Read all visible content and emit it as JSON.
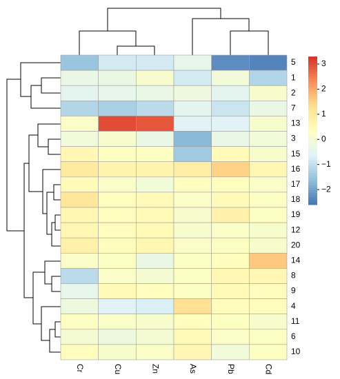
{
  "chart_data": {
    "type": "heatmap",
    "columns": [
      "Cr",
      "Cu",
      "Zn",
      "As",
      "Pb",
      "Cd"
    ],
    "rows": [
      "5",
      "1",
      "2",
      "7",
      "13",
      "3",
      "15",
      "16",
      "17",
      "18",
      "19",
      "12",
      "20",
      "14",
      "8",
      "9",
      "4",
      "11",
      "6",
      "10"
    ],
    "values": [
      [
        -1.5,
        -0.8,
        -0.8,
        -0.4,
        -2.3,
        -2.4
      ],
      [
        -0.3,
        -0.3,
        0.1,
        -0.8,
        -0.1,
        -1.2
      ],
      [
        -0.5,
        -0.4,
        -0.3,
        -0.2,
        -0.5,
        0.1
      ],
      [
        -1.2,
        -1.3,
        -1.1,
        -0.5,
        -0.9,
        -0.3
      ],
      [
        0.2,
        3.0,
        2.9,
        -0.6,
        -0.6,
        0.1
      ],
      [
        -0.1,
        0.1,
        -0.3,
        -1.7,
        -0.3,
        -0.1
      ],
      [
        0.6,
        0.3,
        0.3,
        -1.4,
        0.5,
        0.1
      ],
      [
        1.0,
        0.7,
        0.7,
        0.9,
        1.5,
        0.6
      ],
      [
        0.5,
        0.2,
        -0.1,
        0.4,
        0.4,
        0.2
      ],
      [
        1.1,
        0.4,
        0.5,
        0.2,
        0.5,
        0.3
      ],
      [
        0.6,
        0.4,
        0.5,
        0.1,
        0.8,
        0.3
      ],
      [
        0.6,
        0.4,
        0.5,
        0.1,
        0.2,
        0.1
      ],
      [
        0.8,
        0.4,
        0.6,
        0.2,
        0.3,
        0.1
      ],
      [
        0.2,
        0.3,
        -0.3,
        0.3,
        0.4,
        1.6
      ],
      [
        -1.1,
        0.2,
        0.0,
        0.3,
        0.6,
        0.6
      ],
      [
        -0.4,
        0.5,
        0.4,
        0.3,
        0.5,
        0.4
      ],
      [
        -0.2,
        -0.6,
        -0.7,
        1.3,
        0.4,
        0.4
      ],
      [
        0.3,
        0.2,
        0.1,
        0.4,
        0.3,
        0.1
      ],
      [
        0.0,
        -0.2,
        0.0,
        0.5,
        0.2,
        0.3
      ],
      [
        0.4,
        0.1,
        0.2,
        0.6,
        -0.1,
        0.3
      ]
    ],
    "colors": [
      "#4575B4",
      "#91BFDB",
      "#E0F3F8",
      "#FFFFBF",
      "#FEE090",
      "#FC8D59",
      "#D73027"
    ],
    "clim": [
      -2.6,
      3.3
    ],
    "colorbar_ticks": [
      {
        "value": -2,
        "label": "−2"
      },
      {
        "value": -1,
        "label": "−1"
      },
      0,
      1,
      2,
      3
    ]
  }
}
